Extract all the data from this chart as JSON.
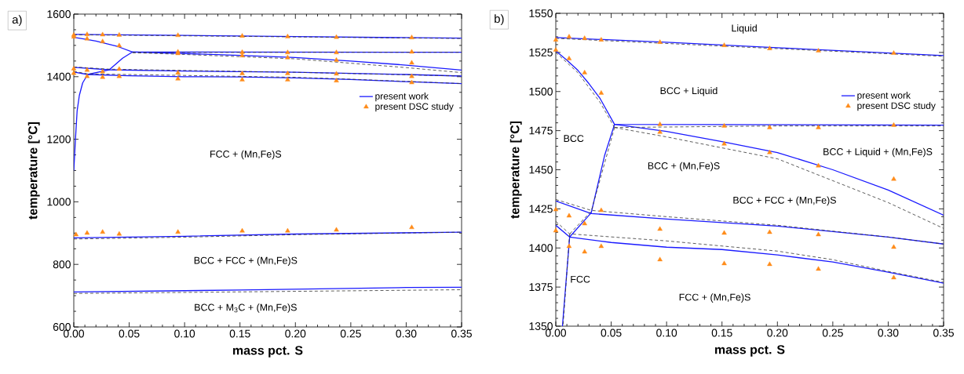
{
  "chart_data": [
    {
      "type": "line",
      "title": "a)",
      "xlabel": "mass pct. S",
      "ylabel": "temperature [°C]",
      "xlim": [
        0,
        0.35
      ],
      "ylim": [
        600,
        1600
      ],
      "xticks": [
        {
          "value": 0,
          "label": "0.00"
        },
        0.05,
        {
          "value": 0.1,
          "label": "0.10"
        },
        0.15,
        {
          "value": 0.2,
          "label": "0.20"
        },
        0.25,
        {
          "value": 0.3,
          "label": "0.30"
        },
        0.35
      ],
      "yticks": [
        600,
        800,
        1000,
        1200,
        1400,
        1600
      ],
      "legend": "right",
      "annotations": [
        "FCC + (Mn,Fe)S",
        "BCC + FCC + (Mn,Fe)S",
        "BCC + M$_{3}$C + (Mn,Fe)S"
      ],
      "series": [
        {
          "name": "present work",
          "type": "line",
          "color": "#1a1aff",
          "line_style": "solid",
          "x": [
            0,
            0.1,
            0.2,
            0.35
          ],
          "values": [
            1535,
            1532,
            1528,
            1523
          ]
        },
        {
          "type": "line",
          "color": "#1a1aff",
          "line_style": "solid",
          "x": [
            0,
            0.01,
            0.02,
            0.03,
            0.04,
            0.053,
            0.35
          ],
          "values": [
            1526,
            1520,
            1514,
            1505,
            1496,
            1479,
            1478
          ]
        },
        {
          "type": "line",
          "color": "#1a1aff",
          "line_style": "solid",
          "x": [
            0.053,
            0.1,
            0.15,
            0.2,
            0.25,
            0.3,
            0.35
          ],
          "values": [
            1479,
            1474,
            1468,
            1461,
            1450,
            1437,
            1421
          ]
        },
        {
          "type": "line",
          "color": "#1a1aff",
          "line_style": "solid",
          "x": [
            0.053,
            0.044,
            0.032,
            0.025,
            0.0125
          ],
          "values": [
            1479,
            1459,
            1422,
            1417,
            1407
          ]
        },
        {
          "type": "line",
          "color": "#1a1aff",
          "line_style": "solid",
          "x": [
            0,
            0.032,
            0.1,
            0.2,
            0.3,
            0.35
          ],
          "values": [
            1430,
            1422,
            1418,
            1414,
            1407,
            1402
          ]
        },
        {
          "type": "line",
          "color": "#1a1aff",
          "line_style": "solid",
          "x": [
            0,
            0.0125,
            0.05,
            0.1,
            0.15,
            0.2,
            0.25,
            0.3,
            0.35
          ],
          "values": [
            1415,
            1407,
            1403,
            1400,
            1399,
            1396,
            1391,
            1384,
            1378
          ]
        },
        {
          "type": "line",
          "color": "#1a1aff",
          "line_style": "solid",
          "x": [
            0.0125,
            0.008,
            0.005,
            0.003,
            0.0015,
            0
          ],
          "values": [
            1407,
            1380,
            1340,
            1290,
            1200,
            1100
          ]
        },
        {
          "type": "line",
          "color": "#1a1aff",
          "line_style": "solid",
          "x": [
            0,
            0.1,
            0.2,
            0.35
          ],
          "values": [
            885,
            890,
            897,
            903
          ]
        },
        {
          "type": "line",
          "color": "#1a1aff",
          "line_style": "solid",
          "x": [
            0,
            0.15,
            0.3,
            0.35
          ],
          "values": [
            712,
            718,
            726,
            727
          ]
        },
        {
          "type": "line",
          "color": "#333333",
          "line_style": "dashed",
          "x": [
            0,
            0.35
          ],
          "values": [
            1534,
            1522
          ]
        },
        {
          "type": "line",
          "color": "#333333",
          "line_style": "dashed",
          "x": [
            0.053,
            0.2,
            0.35
          ],
          "values": [
            1477,
            1478,
            1478
          ]
        },
        {
          "type": "line",
          "color": "#333333",
          "line_style": "dashed",
          "x": [
            0.053,
            0.1,
            0.15,
            0.2,
            0.25,
            0.3,
            0.35
          ],
          "values": [
            1477,
            1471,
            1464,
            1457,
            1443,
            1429,
            1413
          ]
        },
        {
          "type": "line",
          "color": "#333333",
          "line_style": "dashed",
          "x": [
            0,
            0.032,
            0.1,
            0.2,
            0.35
          ],
          "values": [
            1431,
            1424,
            1420,
            1414,
            1402
          ]
        },
        {
          "type": "line",
          "color": "#333333",
          "line_style": "dashed",
          "x": [
            0,
            0.0125,
            0.1,
            0.2,
            0.25,
            0.3,
            0.35
          ],
          "values": [
            1417,
            1409,
            1404,
            1398,
            1392,
            1385,
            1378
          ]
        },
        {
          "type": "line",
          "color": "#333333",
          "line_style": "dashed",
          "x": [
            0,
            0.1,
            0.2,
            0.35
          ],
          "values": [
            881,
            887,
            895,
            903
          ]
        },
        {
          "type": "line",
          "color": "#333333",
          "line_style": "dashed",
          "x": [
            0,
            0.35
          ],
          "values": [
            707,
            719
          ]
        },
        {
          "name": "present DSC study",
          "type": "scatter",
          "color": "#ff8c1a",
          "marker": "triangle",
          "x": [
            0,
            0.012,
            0.026,
            0.041,
            0.094,
            0.152,
            0.193,
            0.237,
            0.305,
            0,
            0.012,
            0.026,
            0.041,
            0.094,
            0.152,
            0.193,
            0.237,
            0.305,
            0.094,
            0.152,
            0.193,
            0.237,
            0.305,
            0,
            0.012,
            0.026,
            0.041,
            0.094,
            0.152,
            0.193,
            0.237,
            0.305,
            0,
            0.012,
            0.026,
            0.041,
            0.094,
            0.152,
            0.193,
            0.237,
            0.305,
            0.002,
            0.012,
            0.026,
            0.041,
            0.094,
            0.152,
            0.193,
            0.237,
            0.305
          ],
          "values": [
            1533,
            1535,
            1534,
            1533,
            1532,
            1530,
            1528,
            1526,
            1525,
            1527,
            1521,
            1512,
            1499,
            1479,
            1478,
            1477,
            1477,
            1479,
            1474,
            1467,
            1461,
            1453,
            1444,
            1425,
            1421,
            1416,
            1424,
            1412,
            1410,
            1410,
            1409,
            1401,
            1411,
            1401,
            1398,
            1401,
            1393,
            1390,
            1390,
            1387,
            1381,
            895,
            900,
            903,
            897,
            903,
            907,
            907,
            910,
            918
          ]
        }
      ]
    },
    {
      "type": "line",
      "title": "b)",
      "xlabel": "mass pct. S",
      "ylabel": "temperature [°C]",
      "xlim": [
        0,
        0.35
      ],
      "ylim": [
        1350,
        1550
      ],
      "xticks": [
        {
          "value": 0,
          "label": "0.00"
        },
        0.05,
        {
          "value": 0.1,
          "label": "0.10"
        },
        0.15,
        {
          "value": 0.2,
          "label": "0.20"
        },
        0.25,
        {
          "value": 0.3,
          "label": "0.30"
        },
        0.35
      ],
      "yticks": [
        1350,
        1375,
        1400,
        1425,
        1450,
        1475,
        1500,
        1525,
        1550
      ],
      "legend": "right",
      "annotations": [
        "Liquid",
        "BCC + Liquid",
        "BCC",
        "BCC + (Mn,Fe)S",
        "BCC + Liquid + (Mn,Fe)S",
        "BCC + FCC + (Mn,Fe)S",
        "FCC",
        "FCC + (Mn,Fe)S"
      ],
      "series": [
        {
          "name": "present work",
          "type": "line",
          "color": "#1a1aff",
          "line_style": "solid",
          "x": [
            0,
            0.1,
            0.2,
            0.35
          ],
          "values": [
            1534.5,
            1531.5,
            1528,
            1523
          ]
        },
        {
          "type": "line",
          "color": "#1a1aff",
          "line_style": "solid",
          "x": [
            0,
            0.01,
            0.02,
            0.03,
            0.04,
            0.053,
            0.35
          ],
          "values": [
            1526,
            1520,
            1513.5,
            1505,
            1495.5,
            1479,
            1478.5
          ]
        },
        {
          "type": "line",
          "color": "#1a1aff",
          "line_style": "solid",
          "x": [
            0.053,
            0.1,
            0.15,
            0.2,
            0.25,
            0.3,
            0.35
          ],
          "values": [
            1479,
            1474.5,
            1468,
            1461,
            1450,
            1437,
            1421
          ]
        },
        {
          "type": "line",
          "color": "#1a1aff",
          "line_style": "solid",
          "x": [
            0.053,
            0.044,
            0.032,
            0.025,
            0.0125
          ],
          "values": [
            1479,
            1459,
            1422.5,
            1417,
            1407
          ]
        },
        {
          "type": "line",
          "color": "#1a1aff",
          "line_style": "solid",
          "x": [
            0,
            0.032,
            0.1,
            0.2,
            0.3,
            0.35
          ],
          "values": [
            1430,
            1422,
            1418.5,
            1414,
            1407,
            1402.5
          ]
        },
        {
          "type": "line",
          "color": "#1a1aff",
          "line_style": "solid",
          "x": [
            0,
            0.0125,
            0.05,
            0.1,
            0.15,
            0.2,
            0.25,
            0.3,
            0.35
          ],
          "values": [
            1414.5,
            1407,
            1403.5,
            1400.5,
            1399,
            1395.5,
            1391,
            1384.5,
            1377.5
          ]
        },
        {
          "type": "line",
          "color": "#1a1aff",
          "line_style": "solid",
          "x": [
            0.0125,
            0.006
          ],
          "values": [
            1407,
            1350
          ]
        },
        {
          "type": "line",
          "color": "#333333",
          "line_style": "dashed",
          "x": [
            0,
            0.35
          ],
          "values": [
            1534,
            1522.5
          ]
        },
        {
          "type": "line",
          "color": "#333333",
          "line_style": "dashed",
          "x": [
            0,
            0.02,
            0.04,
            0.053
          ],
          "values": [
            1525,
            1512,
            1493,
            1477
          ]
        },
        {
          "type": "line",
          "color": "#333333",
          "line_style": "dashed",
          "x": [
            0.053,
            0.2,
            0.35
          ],
          "values": [
            1477,
            1478,
            1478
          ]
        },
        {
          "type": "line",
          "color": "#333333",
          "line_style": "dashed",
          "x": [
            0.053,
            0.1,
            0.15,
            0.2,
            0.25,
            0.3,
            0.35
          ],
          "values": [
            1477,
            1471,
            1464,
            1457,
            1443,
            1429,
            1412.5
          ]
        },
        {
          "type": "line",
          "color": "#333333",
          "line_style": "dashed",
          "x": [
            0.053,
            0.032,
            0.0125
          ],
          "values": [
            1477,
            1423.5,
            1409
          ]
        },
        {
          "type": "line",
          "color": "#333333",
          "line_style": "dashed",
          "x": [
            0,
            0.032,
            0.1,
            0.2,
            0.3,
            0.35
          ],
          "values": [
            1431,
            1424,
            1420,
            1414.5,
            1407,
            1402.5
          ]
        },
        {
          "type": "line",
          "color": "#333333",
          "line_style": "dashed",
          "x": [
            0,
            0.0125,
            0.1,
            0.2,
            0.25,
            0.3,
            0.35
          ],
          "values": [
            1417,
            1409,
            1404.5,
            1398,
            1392.5,
            1385,
            1378
          ]
        },
        {
          "type": "line",
          "color": "#333333",
          "line_style": "dashed",
          "x": [
            0.0125,
            0.0065
          ],
          "values": [
            1409,
            1350
          ]
        },
        {
          "name": "present DSC study",
          "type": "scatter",
          "color": "#ff8c1a",
          "marker": "triangle",
          "x": [
            0,
            0.012,
            0.026,
            0.041,
            0.094,
            0.152,
            0.193,
            0.237,
            0.305,
            0,
            0.012,
            0.026,
            0.041,
            0.094,
            0.152,
            0.193,
            0.237,
            0.305,
            0.094,
            0.152,
            0.193,
            0.237,
            0.305,
            0,
            0.012,
            0.026,
            0.041,
            0.094,
            0.152,
            0.193,
            0.237,
            0.305,
            0,
            0.012,
            0.026,
            0.041,
            0.094,
            0.152,
            0.193,
            0.237,
            0.305
          ],
          "values": [
            1533,
            1535,
            1534,
            1533,
            1531.5,
            1529.5,
            1527.5,
            1526,
            1524.5,
            1526.5,
            1521,
            1512,
            1499,
            1479,
            1478,
            1477,
            1477,
            1478.5,
            1474,
            1466.5,
            1461,
            1452.5,
            1444,
            1424.5,
            1420.5,
            1415.5,
            1424,
            1412,
            1409.5,
            1410,
            1408.5,
            1400.5,
            1411,
            1401,
            1397.5,
            1401,
            1392.5,
            1390,
            1389.5,
            1386.5,
            1381
          ]
        }
      ]
    }
  ]
}
